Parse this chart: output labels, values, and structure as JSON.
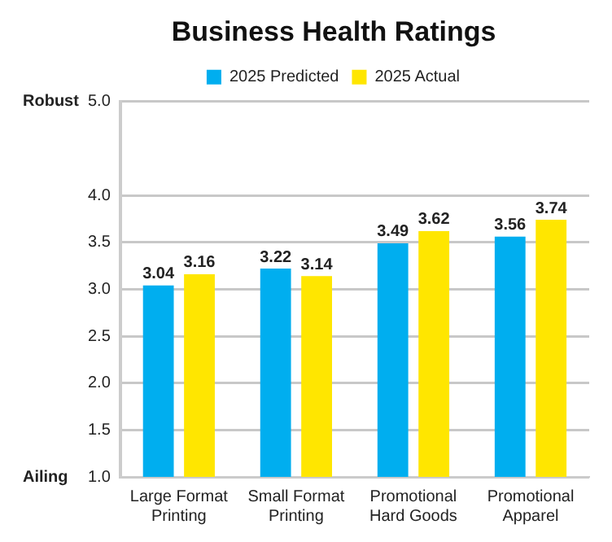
{
  "chart_data": {
    "type": "bar",
    "title": "Business Health Ratings",
    "categories": [
      "Large Format Printing",
      "Small Format Printing",
      "Promotional Hard Goods",
      "Promotional Apparel"
    ],
    "series": [
      {
        "name": "2025 Predicted",
        "color": "#00aeef",
        "values": [
          3.04,
          3.22,
          3.49,
          3.56
        ]
      },
      {
        "name": "2025 Actual",
        "color": "#ffe600",
        "values": [
          3.16,
          3.14,
          3.62,
          3.74
        ]
      }
    ],
    "ylim": [
      1,
      5
    ],
    "yticks": [
      {
        "value": 1,
        "label": "1.0"
      },
      1.5,
      {
        "value": 2,
        "label": "2.0"
      },
      2.5,
      {
        "value": 3,
        "label": "3.0"
      },
      3.5,
      {
        "value": 4,
        "label": "4.0"
      },
      {
        "value": 5,
        "label": "5.0"
      }
    ],
    "annotations": [
      "Robust",
      "Ailing"
    ],
    "grid": "y",
    "legend": "top",
    "data_labels": true
  }
}
